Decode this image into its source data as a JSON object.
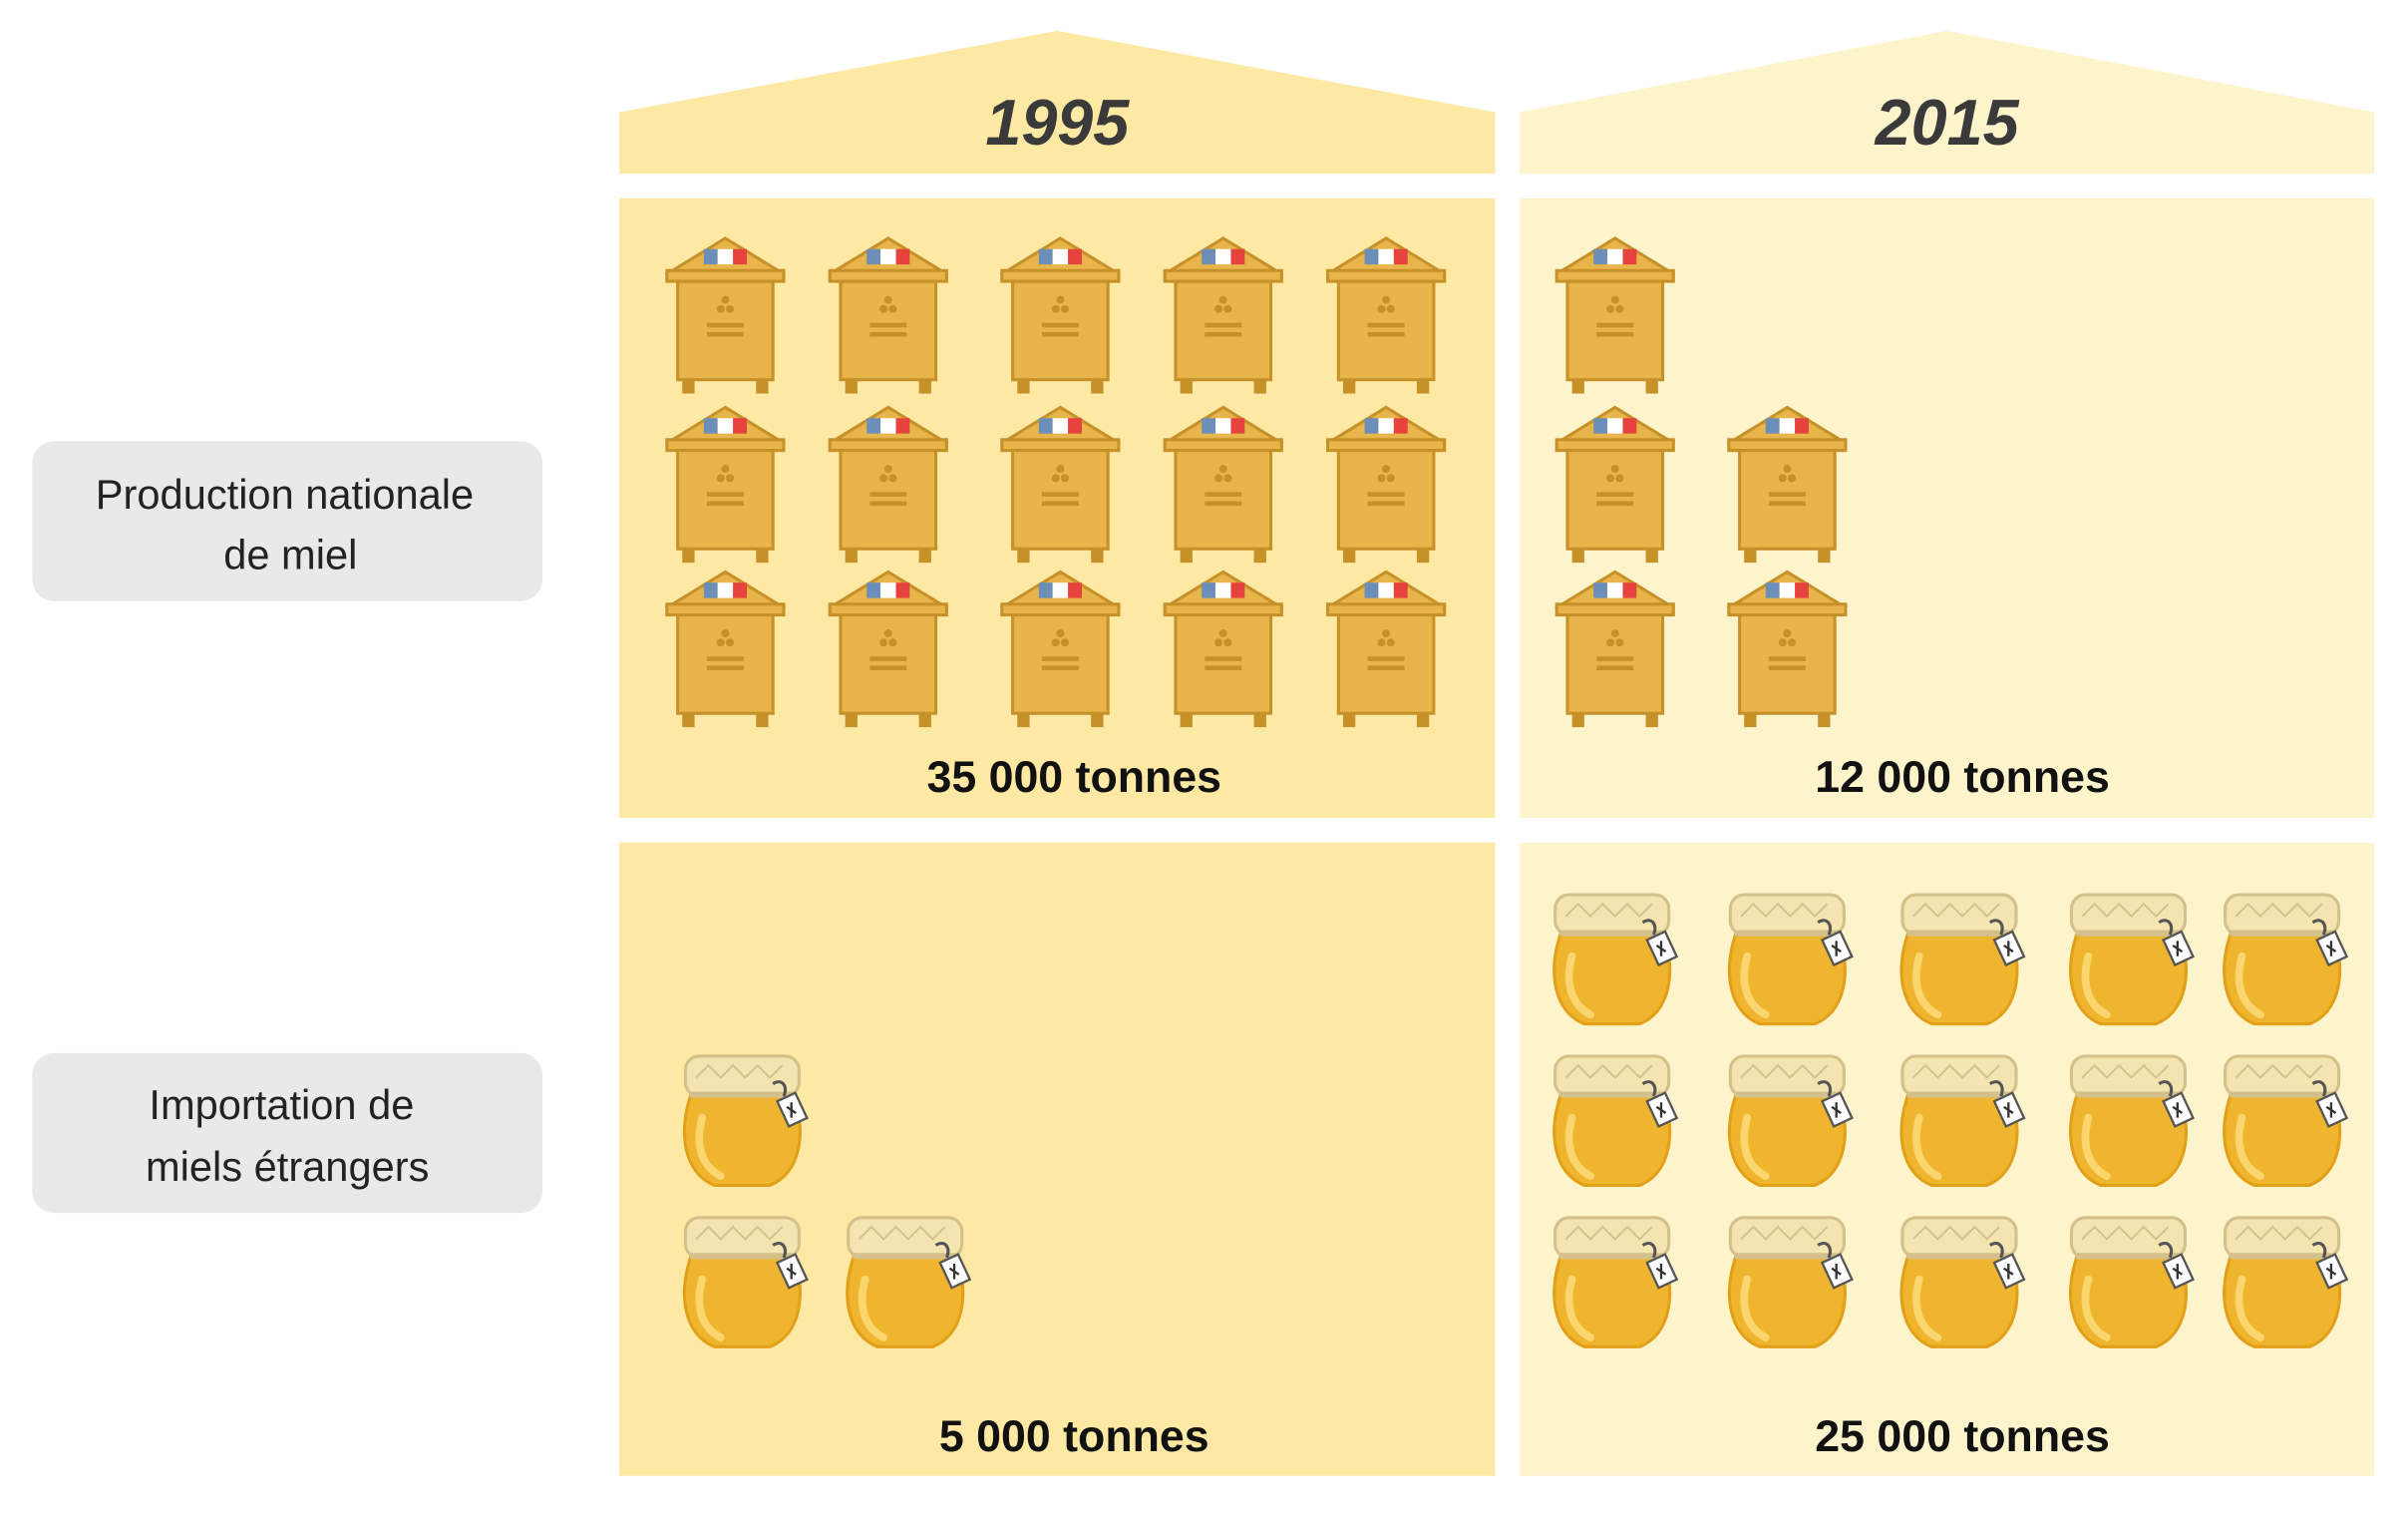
{
  "chart_data": {
    "type": "pictogram",
    "unit": "tonnes",
    "columns": [
      "1995",
      "2015"
    ],
    "rows": [
      {
        "label": "Production nationale de miel",
        "label_lines": [
          "Production nationale",
          "de miel"
        ],
        "icon": "beehive-icon",
        "values": [
          35000,
          12000
        ],
        "value_labels": [
          "35 000 tonnes",
          "12 000 tonnes"
        ],
        "icon_counts": [
          15,
          5
        ],
        "icon_rows": [
          [
            5,
            5,
            5
          ],
          [
            1,
            2,
            2
          ]
        ]
      },
      {
        "label": "Importation de miels étrangers",
        "label_lines": [
          "Importation de",
          "miels étrangers"
        ],
        "icon": "honey-jar-icon",
        "values": [
          5000,
          25000
        ],
        "value_labels": [
          "5 000 tonnes",
          "25 000 tonnes"
        ],
        "icon_counts": [
          3,
          15
        ],
        "icon_rows": [
          [
            0,
            1,
            2
          ],
          [
            5,
            5,
            5
          ]
        ]
      }
    ]
  },
  "colors": {
    "panel_1995": "#fde9a4",
    "panel_2015": "#fef4cc",
    "hive_body": "#e8b54a",
    "hive_stroke": "#c7912a",
    "jar_honey": "#f0b52e",
    "jar_lid": "#f3e4b0",
    "label_box": "#e9e9e7",
    "title_text": "#3a3a3a"
  }
}
